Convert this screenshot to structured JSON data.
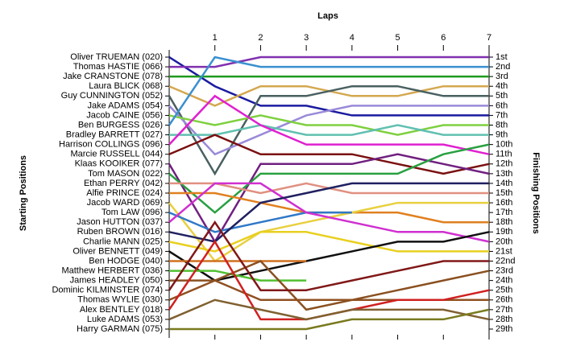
{
  "chart_data": {
    "type": "line",
    "title": "Laps",
    "ylabel": "Starting Positions",
    "y2label": "Finishing Positions",
    "x": [
      0,
      1,
      2,
      3,
      4,
      5,
      6,
      7
    ],
    "xlim": [
      0,
      7
    ],
    "xticks": [
      1,
      2,
      3,
      4,
      5,
      6,
      7
    ],
    "ylim": [
      1,
      29
    ],
    "y_inverted": true,
    "yticks": [
      1,
      2,
      3,
      4,
      5,
      6,
      7,
      8,
      9,
      10,
      11,
      12,
      13,
      14,
      15,
      16,
      17,
      18,
      19,
      20,
      21,
      22,
      23,
      24,
      25,
      26,
      27,
      28,
      29
    ],
    "finishing_labels": [
      "1st",
      "2nd",
      "3rd",
      "4th",
      "5th",
      "6th",
      "7th",
      "8th",
      "9th",
      "10th",
      "11th",
      "12th",
      "13th",
      "14th",
      "15th",
      "16th",
      "17th",
      "18th",
      "19th",
      "20th",
      "21st",
      "22nd",
      "23rd",
      "24th",
      "25th",
      "26th",
      "27th",
      "28th",
      "29th"
    ],
    "series": [
      {
        "name": "Oliver TRUEMAN (020)",
        "color": "#1a1aa0",
        "values": [
          1,
          4,
          6,
          6,
          7,
          7,
          7,
          7
        ]
      },
      {
        "name": "Thomas HASTIE (066)",
        "color": "#8030b0",
        "values": [
          2,
          2,
          1,
          1,
          1,
          1,
          1,
          1
        ]
      },
      {
        "name": "Jake CRANSTONE (078)",
        "color": "#1e9a1e",
        "values": [
          3,
          3,
          3,
          3,
          3,
          3,
          3,
          3
        ]
      },
      {
        "name": "Laura BLICK (068)",
        "color": "#d4a850",
        "values": [
          4,
          6,
          4,
          4,
          5,
          5,
          4,
          4
        ]
      },
      {
        "name": "Guy CUNNINGTON (052)",
        "color": "#4a6060",
        "values": [
          5,
          13,
          5,
          5,
          4,
          4,
          5,
          5
        ]
      },
      {
        "name": "Jake ADAMS (054)",
        "color": "#9a8ad8",
        "values": [
          6,
          11,
          9,
          7,
          6,
          6,
          6,
          6
        ]
      },
      {
        "name": "Jacob CAINE (056)",
        "color": "#7ed040",
        "values": [
          7,
          8,
          7,
          8,
          8,
          9,
          8,
          8
        ]
      },
      {
        "name": "Ben BURGESS (026)",
        "color": "#3a90d0",
        "values": [
          8,
          1,
          2,
          2,
          2,
          2,
          2,
          2
        ]
      },
      {
        "name": "Bradley BARRETT (027)",
        "color": "#60c0b0",
        "values": [
          9,
          9,
          8,
          9,
          9,
          8,
          9,
          9
        ]
      },
      {
        "name": "Harrison COLLINGS (096)",
        "color": "#e020d0",
        "values": [
          10,
          5,
          8,
          10,
          10,
          10,
          10,
          11
        ]
      },
      {
        "name": "Marcie RUSSELL (044)",
        "color": "#7a1010",
        "values": [
          11,
          9,
          11,
          11,
          11,
          12,
          13,
          12
        ]
      },
      {
        "name": "Klaas KOOIKER (077)",
        "color": "#702080",
        "values": [
          12,
          20,
          12,
          12,
          12,
          11,
          12,
          13
        ]
      },
      {
        "name": "Tom MASON (022)",
        "color": "#28a040",
        "values": [
          13,
          17,
          13,
          13,
          13,
          13,
          11,
          10
        ]
      },
      {
        "name": "Ethan PERRY (042)",
        "color": "#e09080",
        "values": [
          14,
          14,
          15,
          14,
          15,
          15,
          15,
          15
        ]
      },
      {
        "name": "Alfie PRINCE (024)",
        "color": "#e08020",
        "values": [
          15,
          15,
          16,
          17,
          17,
          17,
          18,
          18
        ]
      },
      {
        "name": "Jacob WARD (069)",
        "color": "#e8d040",
        "values": [
          16,
          22,
          19,
          18,
          17,
          16,
          16,
          16
        ]
      },
      {
        "name": "Tom LAW (096)",
        "color": "#2f78c8",
        "values": [
          17,
          19,
          18,
          17,
          17,
          null,
          null,
          null
        ]
      },
      {
        "name": "Jason HUTTON (037)",
        "color": "#d030d0",
        "values": [
          18,
          14,
          14,
          17,
          18,
          19,
          19,
          20
        ]
      },
      {
        "name": "Ruben BROWN (016)",
        "color": "#202060",
        "values": [
          19,
          20,
          16,
          15,
          14,
          14,
          14,
          14
        ]
      },
      {
        "name": "Charlie MANN (025)",
        "color": "#e8d020",
        "values": [
          20,
          21,
          19,
          19,
          20,
          21,
          21,
          21
        ]
      },
      {
        "name": "Oliver BENNETT (049)",
        "color": "#101010",
        "values": [
          21,
          24,
          23,
          22,
          21,
          20,
          20,
          19
        ]
      },
      {
        "name": "Ben HODGE (040)",
        "color": "#d07020",
        "values": [
          22,
          22,
          22,
          22,
          null,
          null,
          null,
          null
        ]
      },
      {
        "name": "Matthew HERBERT (036)",
        "color": "#50c030",
        "values": [
          23,
          23,
          24,
          24,
          null,
          null,
          null,
          null
        ]
      },
      {
        "name": "James HEADLEY (050)",
        "color": "#8a5020",
        "values": [
          24,
          24,
          22,
          27,
          26,
          25,
          24,
          23
        ]
      },
      {
        "name": "Dominic KILMINSTER (074)",
        "color": "#801818",
        "values": [
          25,
          18,
          25,
          25,
          24,
          23,
          22,
          22
        ]
      },
      {
        "name": "Thomas WYLIE (030)",
        "color": "#905020",
        "values": [
          26,
          24,
          26,
          26,
          26,
          26,
          26,
          26
        ]
      },
      {
        "name": "Alex BENTLEY (018)",
        "color": "#d02020",
        "values": [
          27,
          20,
          28,
          28,
          27,
          26,
          26,
          25
        ]
      },
      {
        "name": "Luke ADAMS (053)",
        "color": "#806030",
        "values": [
          28,
          26,
          27,
          28,
          27,
          27,
          27,
          28
        ]
      },
      {
        "name": "Harry GARMAN (075)",
        "color": "#7a7a20",
        "values": [
          29,
          29,
          29,
          29,
          28,
          28,
          28,
          27
        ]
      }
    ]
  }
}
